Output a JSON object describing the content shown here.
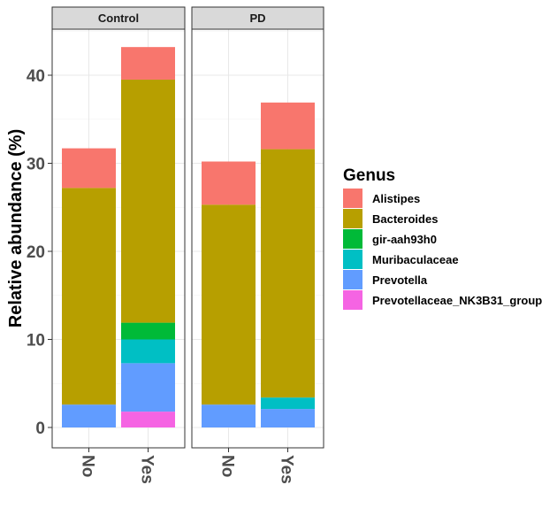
{
  "chart_data": {
    "type": "bar",
    "stacked": true,
    "facet_by": "Group",
    "facets": [
      "Control",
      "PD"
    ],
    "categories": [
      "No",
      "Yes"
    ],
    "ylabel": "Relative abundance (%)",
    "ylim": [
      0,
      45
    ],
    "yticks": [
      "0",
      "10",
      "20",
      "30",
      "40"
    ],
    "grid": true,
    "legend": {
      "title": "Genus",
      "position": "right"
    },
    "series": [
      {
        "name": "Prevotellaceae_NK3B31_group",
        "color": "#F564E3",
        "values": {
          "Control": [
            0,
            1.8
          ],
          "PD": [
            0,
            0
          ]
        }
      },
      {
        "name": "Prevotella",
        "color": "#619CFF",
        "values": {
          "Control": [
            2.6,
            5.5
          ],
          "PD": [
            2.6,
            2.1
          ]
        }
      },
      {
        "name": "Muribaculaceae",
        "color": "#00BFC4",
        "values": {
          "Control": [
            0,
            2.7
          ],
          "PD": [
            0,
            1.3
          ]
        }
      },
      {
        "name": "gir-aah93h0",
        "color": "#00BA38",
        "values": {
          "Control": [
            0,
            1.9
          ],
          "PD": [
            0,
            0
          ]
        }
      },
      {
        "name": "Bacteroides",
        "color": "#B79F00",
        "values": {
          "Control": [
            24.6,
            27.6
          ],
          "PD": [
            22.7,
            28.2
          ]
        }
      },
      {
        "name": "Alistipes",
        "color": "#F8766D",
        "values": {
          "Control": [
            4.5,
            3.7
          ],
          "PD": [
            4.9,
            5.3
          ]
        }
      }
    ]
  }
}
